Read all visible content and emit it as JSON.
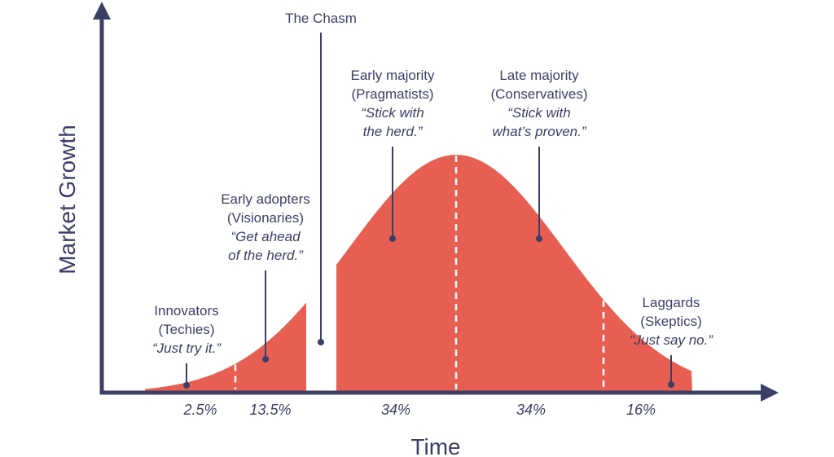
{
  "colors": {
    "curve": "#e65f52",
    "ink": "#3b3f66",
    "divider": "#ffffff"
  },
  "axes": {
    "x_title": "Time",
    "y_title": "Market Growth"
  },
  "chasm": {
    "label": "The Chasm"
  },
  "segments": [
    {
      "id": "innovators",
      "name": "Innovators",
      "group": "(Techies)",
      "quote_lines": [
        "“Just try it.”"
      ],
      "percent": "2.5%"
    },
    {
      "id": "early-adopters",
      "name": "Early adopters",
      "group": "(Visionaries)",
      "quote_lines": [
        "“Get ahead",
        "of the herd.”"
      ],
      "percent": "13.5%"
    },
    {
      "id": "early-majority",
      "name": "Early majority",
      "group": "(Pragmatists)",
      "quote_lines": [
        "“Stick with",
        "the herd.”"
      ],
      "percent": "34%"
    },
    {
      "id": "late-majority",
      "name": "Late majority",
      "group": "(Conservatives)",
      "quote_lines": [
        "“Stick with",
        "what’s proven.”"
      ],
      "percent": "34%"
    },
    {
      "id": "laggards",
      "name": "Laggards",
      "group": "(Skeptics)",
      "quote_lines": [
        "“Just say no.”"
      ],
      "percent": "16%"
    }
  ]
}
